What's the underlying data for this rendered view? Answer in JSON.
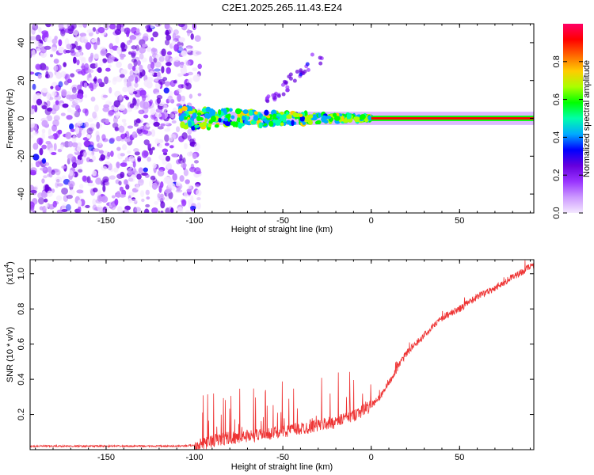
{
  "title": "C2E1.2025.265.11.43.E24",
  "chart_data": [
    {
      "type": "heatmap",
      "name": "spectrogram",
      "xlabel": "Height of straight line (km)",
      "ylabel": "Frequency (Hz)",
      "xlim": [
        -193,
        92
      ],
      "ylim": [
        -50,
        50
      ],
      "xticks": [
        -150,
        -100,
        -50,
        0,
        50
      ],
      "xtick_labels": [
        "-150",
        "-100",
        "-50",
        "0",
        "50"
      ],
      "yticks": [
        -40,
        -20,
        0,
        20,
        40
      ],
      "ytick_labels": [
        "-40",
        "-20",
        "0",
        "20",
        "40"
      ],
      "noise_region_x": [
        -193,
        -97
      ],
      "signal_band_x": [
        -108,
        92
      ],
      "signal_frequency_hz": 0,
      "drift_feature": {
        "x_start": -60,
        "y_start": 8,
        "x_end": -25,
        "y_end": 36
      },
      "colorbar": {
        "label": "Normalized spectral amplitude",
        "range": [
          0.0,
          1.0
        ],
        "ticks": [
          0.0,
          0.2,
          0.4,
          0.6,
          0.8
        ],
        "tick_labels": [
          "0.0",
          "0.2",
          "0.4",
          "0.6",
          "0.8"
        ],
        "colormap": [
          "#f4e8ff",
          "#cc99ff",
          "#9933ff",
          "#6600dd",
          "#0000ff",
          "#00aaff",
          "#00ffaa",
          "#00ff00",
          "#aaff00",
          "#ffcc00",
          "#ff6600",
          "#ff0000",
          "#ff0066"
        ]
      }
    },
    {
      "type": "line",
      "name": "snr",
      "xlabel": "Height of straight line (km)",
      "ylabel": "SNR (10 * v/v)",
      "y_multiplier_label": "(x10",
      "y_multiplier_exponent": "4",
      "y_multiplier_close": ")",
      "xlim": [
        -193,
        92
      ],
      "ylim": [
        0,
        1.08
      ],
      "xticks": [
        -150,
        -100,
        -50,
        0,
        50
      ],
      "xtick_labels": [
        "-150",
        "-100",
        "-50",
        "0",
        "50"
      ],
      "yticks": [
        0.2,
        0.4,
        0.6,
        0.8,
        1.0
      ],
      "ytick_labels": [
        "0.2",
        "0.4",
        "0.6",
        "0.8",
        "1.0"
      ],
      "color": "#ee3333",
      "trend": {
        "x": [
          -193,
          -150,
          -110,
          -100,
          -90,
          -80,
          -70,
          -60,
          -50,
          -40,
          -30,
          -20,
          -10,
          0,
          5,
          10,
          20,
          30,
          40,
          50,
          60,
          70,
          80,
          92
        ],
        "y": [
          0.02,
          0.02,
          0.02,
          0.025,
          0.05,
          0.07,
          0.08,
          0.09,
          0.11,
          0.12,
          0.14,
          0.16,
          0.2,
          0.25,
          0.3,
          0.38,
          0.55,
          0.65,
          0.75,
          0.8,
          0.87,
          0.92,
          0.98,
          1.05
        ]
      }
    }
  ]
}
